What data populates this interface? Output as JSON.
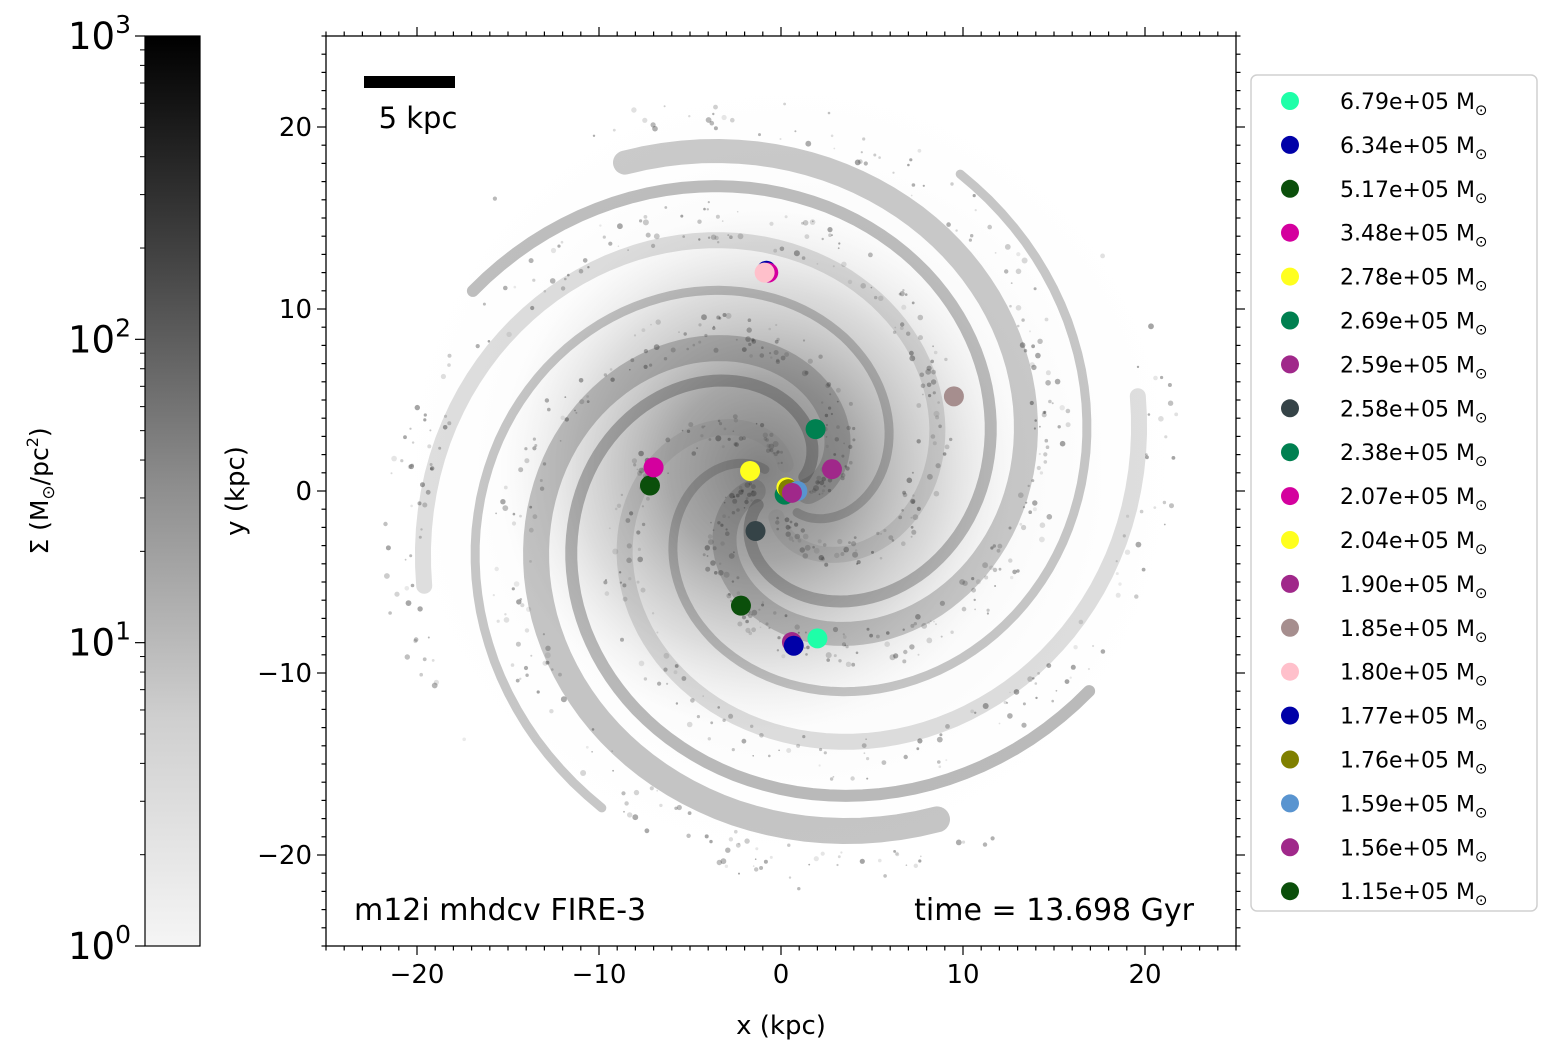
{
  "chart_data": {
    "type": "scatter",
    "title": "",
    "xlabel": "x (kpc)",
    "ylabel": "y (kpc)",
    "xlim": [
      -25,
      25
    ],
    "ylim": [
      -25,
      25
    ],
    "x_ticks": [
      -20,
      -10,
      0,
      10,
      20
    ],
    "y_ticks": [
      -20,
      -10,
      0,
      10,
      20
    ],
    "x_tick_labels": [
      "−20",
      "−10",
      "0",
      "10",
      "20"
    ],
    "y_tick_labels": [
      "−20",
      "−10",
      "0",
      "10",
      "20"
    ],
    "background": "grayscale gas surface density map, spiral galaxy, face-on",
    "scale_bar": {
      "length_kpc": 5,
      "label": "5 kpc"
    },
    "annotations": {
      "simulation": "m12i mhdcv FIRE-3",
      "time": "time = 13.698 Gyr"
    },
    "colorbar": {
      "label_prefix": "Σ (M",
      "label_sun": "⊙",
      "label_mid": "/pc",
      "label_sup": "2",
      "label_suffix": ")",
      "scale": "log",
      "range": [
        1,
        1000
      ],
      "tick_values": [
        1,
        10,
        100,
        1000
      ],
      "tick_bases": [
        "10",
        "10",
        "10",
        "10"
      ],
      "tick_exponents": [
        "0",
        "1",
        "2",
        "3"
      ],
      "colormap": "Greys"
    },
    "legend": {
      "placement": "outside right"
    },
    "series": [
      {
        "name": "6.79e+05",
        "color": "#1effa8",
        "x": 2.0,
        "y": -8.1
      },
      {
        "name": "6.34e+05",
        "color": "#0000a8",
        "x": -0.8,
        "y": 12.1
      },
      {
        "name": "5.17e+05",
        "color": "#0b4f0b",
        "x": -7.2,
        "y": 0.3
      },
      {
        "name": "3.48e+05",
        "color": "#d4009e",
        "x": -0.7,
        "y": 12.0
      },
      {
        "name": "2.78e+05",
        "color": "#ffff1e",
        "x": -1.7,
        "y": 1.1
      },
      {
        "name": "2.69e+05",
        "color": "#008050",
        "x": 0.2,
        "y": -0.2
      },
      {
        "name": "2.59e+05",
        "color": "#a0288a",
        "x": 2.8,
        "y": 1.2
      },
      {
        "name": "2.58e+05",
        "color": "#354347",
        "x": -1.4,
        "y": -2.2
      },
      {
        "name": "2.38e+05",
        "color": "#008050",
        "x": 1.9,
        "y": 3.4
      },
      {
        "name": "2.07e+05",
        "color": "#d4009e",
        "x": -7.0,
        "y": 1.3
      },
      {
        "name": "2.04e+05",
        "color": "#ffff1e",
        "x": 0.3,
        "y": 0.2
      },
      {
        "name": "1.90e+05",
        "color": "#a0288a",
        "x": 0.6,
        "y": -8.3
      },
      {
        "name": "1.85e+05",
        "color": "#a68e8e",
        "x": 9.5,
        "y": 5.2
      },
      {
        "name": "1.80e+05",
        "color": "#ffc0cb",
        "x": -0.9,
        "y": 12.0
      },
      {
        "name": "1.77e+05",
        "color": "#0000a8",
        "x": 0.7,
        "y": -8.5
      },
      {
        "name": "1.76e+05",
        "color": "#808000",
        "x": 0.4,
        "y": 0.1
      },
      {
        "name": "1.59e+05",
        "color": "#5994d0",
        "x": 0.9,
        "y": 0.0
      },
      {
        "name": "1.56e+05",
        "color": "#a0288a",
        "x": 0.6,
        "y": -0.1
      },
      {
        "name": "1.15e+05",
        "color": "#0b4f0b",
        "x": -2.2,
        "y": -6.3
      }
    ],
    "legend_unit_prefix": "M",
    "legend_unit_sub": "⊙"
  }
}
